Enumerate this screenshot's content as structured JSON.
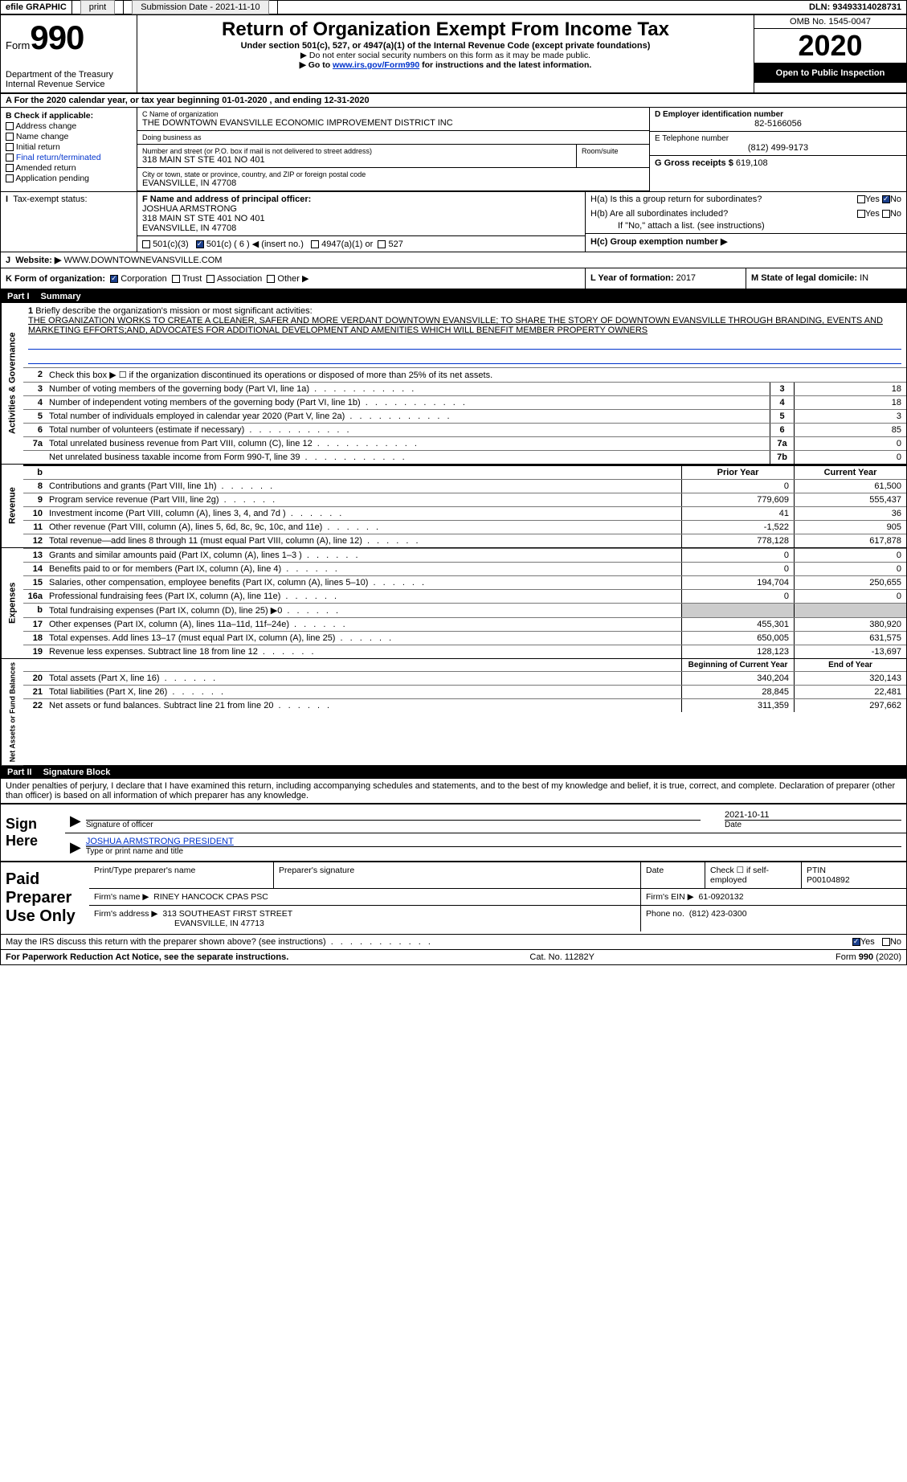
{
  "efile": {
    "label": "efile GRAPHIC",
    "print": "print",
    "sub_label": "Submission Date -",
    "sub_date": "2021-11-10",
    "dln_label": "DLN:",
    "dln": "93493314028731"
  },
  "hdr": {
    "form_word": "Form",
    "form_no": "990",
    "dept": "Department of the Treasury\nInternal Revenue Service",
    "title": "Return of Organization Exempt From Income Tax",
    "sub": "Under section 501(c), 527, or 4947(a)(1) of the Internal Revenue Code (except private foundations)",
    "note1": "▶ Do not enter social security numbers on this form as it may be made public.",
    "note2_pre": "▶ Go to ",
    "note2_link": "www.irs.gov/Form990",
    "note2_post": " for instructions and the latest information.",
    "omb": "OMB No. 1545-0047",
    "year": "2020",
    "open": "Open to Public Inspection"
  },
  "A": {
    "line": "For the 2020 calendar year, or tax year beginning 01-01-2020     , and ending 12-31-2020"
  },
  "B": {
    "head": "B Check if applicable:",
    "items": [
      "Address change",
      "Name change",
      "Initial return",
      "Final return/terminated",
      "Amended return",
      "Application pending"
    ]
  },
  "C": {
    "label": "C Name of organization",
    "name": "THE DOWNTOWN EVANSVILLE ECONOMIC IMPROVEMENT DISTRICT INC",
    "dba_label": "Doing business as",
    "dba": "",
    "addr_label": "Number and street (or P.O. box if mail is not delivered to street address)",
    "room_label": "Room/suite",
    "addr": "318 MAIN ST STE 401 NO 401",
    "city_label": "City or town, state or province, country, and ZIP or foreign postal code",
    "city": "EVANSVILLE, IN  47708"
  },
  "D": {
    "label": "D Employer identification number",
    "val": "82-5166056"
  },
  "E": {
    "label": "E Telephone number",
    "val": "(812) 499-9173"
  },
  "G": {
    "label": "G Gross receipts $",
    "val": "619,108"
  },
  "F": {
    "label": "F  Name and address of principal officer:",
    "name": "JOSHUA ARMSTRONG",
    "addr1": "318 MAIN ST STE 401 NO 401",
    "addr2": "EVANSVILLE, IN  47708"
  },
  "H": {
    "a": "H(a)  Is this a group return for subordinates?",
    "b": "H(b)  Are all subordinates included?",
    "bno": "If \"No,\" attach a list. (see instructions)",
    "c": "H(c)  Group exemption number ▶",
    "yes": "Yes",
    "no": "No"
  },
  "I": {
    "label": "Tax-exempt status:",
    "o1": "501(c)(3)",
    "o2": "501(c) ( 6 ) ◀ (insert no.)",
    "o3": "4947(a)(1) or",
    "o4": "527"
  },
  "J": {
    "label": "Website: ▶",
    "val": "WWW.DOWNTOWNEVANSVILLE.COM"
  },
  "K": {
    "label": "K Form of organization:",
    "opts": [
      "Corporation",
      "Trust",
      "Association",
      "Other ▶"
    ]
  },
  "L": {
    "label": "L Year of formation:",
    "val": "2017"
  },
  "M": {
    "label": "M State of legal domicile:",
    "val": "IN"
  },
  "part1": {
    "tag": "Part I",
    "title": "Summary",
    "q1": "Briefly describe the organization's mission or most significant activities:",
    "mission": "THE ORGANIZATION WORKS TO CREATE A CLEANER, SAFER AND MORE VERDANT DOWNTOWN EVANSVILLE; TO SHARE THE STORY OF DOWNTOWN EVANSVILLE THROUGH BRANDING, EVENTS AND MARKETING EFFORTS;AND, ADVOCATES FOR ADDITIONAL DEVELOPMENT AND AMENITIES WHICH WILL BENEFIT MEMBER PROPERTY OWNERS",
    "q2": "Check this box ▶ ☐ if the organization discontinued its operations or disposed of more than 25% of its net assets.",
    "lines_ag": [
      {
        "n": "3",
        "t": "Number of voting members of the governing body (Part VI, line 1a)",
        "c": "3",
        "v": "18"
      },
      {
        "n": "4",
        "t": "Number of independent voting members of the governing body (Part VI, line 1b)",
        "c": "4",
        "v": "18"
      },
      {
        "n": "5",
        "t": "Total number of individuals employed in calendar year 2020 (Part V, line 2a)",
        "c": "5",
        "v": "3"
      },
      {
        "n": "6",
        "t": "Total number of volunteers (estimate if necessary)",
        "c": "6",
        "v": "85"
      },
      {
        "n": "7a",
        "t": "Total unrelated business revenue from Part VIII, column (C), line 12",
        "c": "7a",
        "v": "0"
      },
      {
        "n": "",
        "t": "Net unrelated business taxable income from Form 990-T, line 39",
        "c": "7b",
        "v": "0"
      }
    ],
    "prior": "Prior Year",
    "current": "Current Year",
    "rev": [
      {
        "n": "8",
        "t": "Contributions and grants (Part VIII, line 1h)",
        "p": "0",
        "c": "61,500"
      },
      {
        "n": "9",
        "t": "Program service revenue (Part VIII, line 2g)",
        "p": "779,609",
        "c": "555,437"
      },
      {
        "n": "10",
        "t": "Investment income (Part VIII, column (A), lines 3, 4, and 7d )",
        "p": "41",
        "c": "36"
      },
      {
        "n": "11",
        "t": "Other revenue (Part VIII, column (A), lines 5, 6d, 8c, 9c, 10c, and 11e)",
        "p": "-1,522",
        "c": "905"
      },
      {
        "n": "12",
        "t": "Total revenue—add lines 8 through 11 (must equal Part VIII, column (A), line 12)",
        "p": "778,128",
        "c": "617,878"
      }
    ],
    "exp": [
      {
        "n": "13",
        "t": "Grants and similar amounts paid (Part IX, column (A), lines 1–3 )",
        "p": "0",
        "c": "0"
      },
      {
        "n": "14",
        "t": "Benefits paid to or for members (Part IX, column (A), line 4)",
        "p": "0",
        "c": "0"
      },
      {
        "n": "15",
        "t": "Salaries, other compensation, employee benefits (Part IX, column (A), lines 5–10)",
        "p": "194,704",
        "c": "250,655"
      },
      {
        "n": "16a",
        "t": "Professional fundraising fees (Part IX, column (A), line 11e)",
        "p": "0",
        "c": "0"
      },
      {
        "n": "b",
        "t": "Total fundraising expenses (Part IX, column (D), line 25) ▶0",
        "p": "",
        "c": ""
      },
      {
        "n": "17",
        "t": "Other expenses (Part IX, column (A), lines 11a–11d, 11f–24e)",
        "p": "455,301",
        "c": "380,920"
      },
      {
        "n": "18",
        "t": "Total expenses. Add lines 13–17 (must equal Part IX, column (A), line 25)",
        "p": "650,005",
        "c": "631,575"
      },
      {
        "n": "19",
        "t": "Revenue less expenses. Subtract line 18 from line 12",
        "p": "128,123",
        "c": "-13,697"
      }
    ],
    "beg": "Beginning of Current Year",
    "end": "End of Year",
    "net": [
      {
        "n": "20",
        "t": "Total assets (Part X, line 16)",
        "p": "340,204",
        "c": "320,143"
      },
      {
        "n": "21",
        "t": "Total liabilities (Part X, line 26)",
        "p": "28,845",
        "c": "22,481"
      },
      {
        "n": "22",
        "t": "Net assets or fund balances. Subtract line 21 from line 20",
        "p": "311,359",
        "c": "297,662"
      }
    ],
    "vlab_ag": "Activities & Governance",
    "vlab_rev": "Revenue",
    "vlab_exp": "Expenses",
    "vlab_net": "Net Assets or Fund Balances"
  },
  "part2": {
    "tag": "Part II",
    "title": "Signature Block",
    "decl": "Under penalties of perjury, I declare that I have examined this return, including accompanying schedules and statements, and to the best of my knowledge and belief, it is true, correct, and complete. Declaration of preparer (other than officer) is based on all information of which preparer has any knowledge.",
    "sign_here": "Sign Here",
    "sig_officer": "Signature of officer",
    "sig_date": "Date",
    "date_val": "2021-10-11",
    "name_title": "JOSHUA ARMSTRONG  PRESIDENT",
    "name_title_lab": "Type or print name and title",
    "paid": "Paid Preparer Use Only",
    "p_name_lab": "Print/Type preparer's name",
    "p_sig_lab": "Preparer's signature",
    "p_date_lab": "Date",
    "p_check": "Check ☐ if self-employed",
    "ptin_lab": "PTIN",
    "ptin": "P00104892",
    "firm_name_lab": "Firm's name    ▶",
    "firm_name": "RINEY HANCOCK CPAS PSC",
    "firm_ein_lab": "Firm's EIN ▶",
    "firm_ein": "61-0920132",
    "firm_addr_lab": "Firm's address ▶",
    "firm_addr1": "313 SOUTHEAST FIRST STREET",
    "firm_addr2": "EVANSVILLE, IN  47713",
    "phone_lab": "Phone no.",
    "phone": "(812) 423-0300",
    "may_irs": "May the IRS discuss this return with the preparer shown above? (see instructions)",
    "yes": "Yes",
    "no": "No"
  },
  "footer": {
    "left": "For Paperwork Reduction Act Notice, see the separate instructions.",
    "mid": "Cat. No. 11282Y",
    "right": "Form 990 (2020)",
    "right_bold": "990"
  },
  "colors": {
    "link": "#0033cc",
    "check_fill": "#1a3e8b",
    "black": "#000000"
  }
}
